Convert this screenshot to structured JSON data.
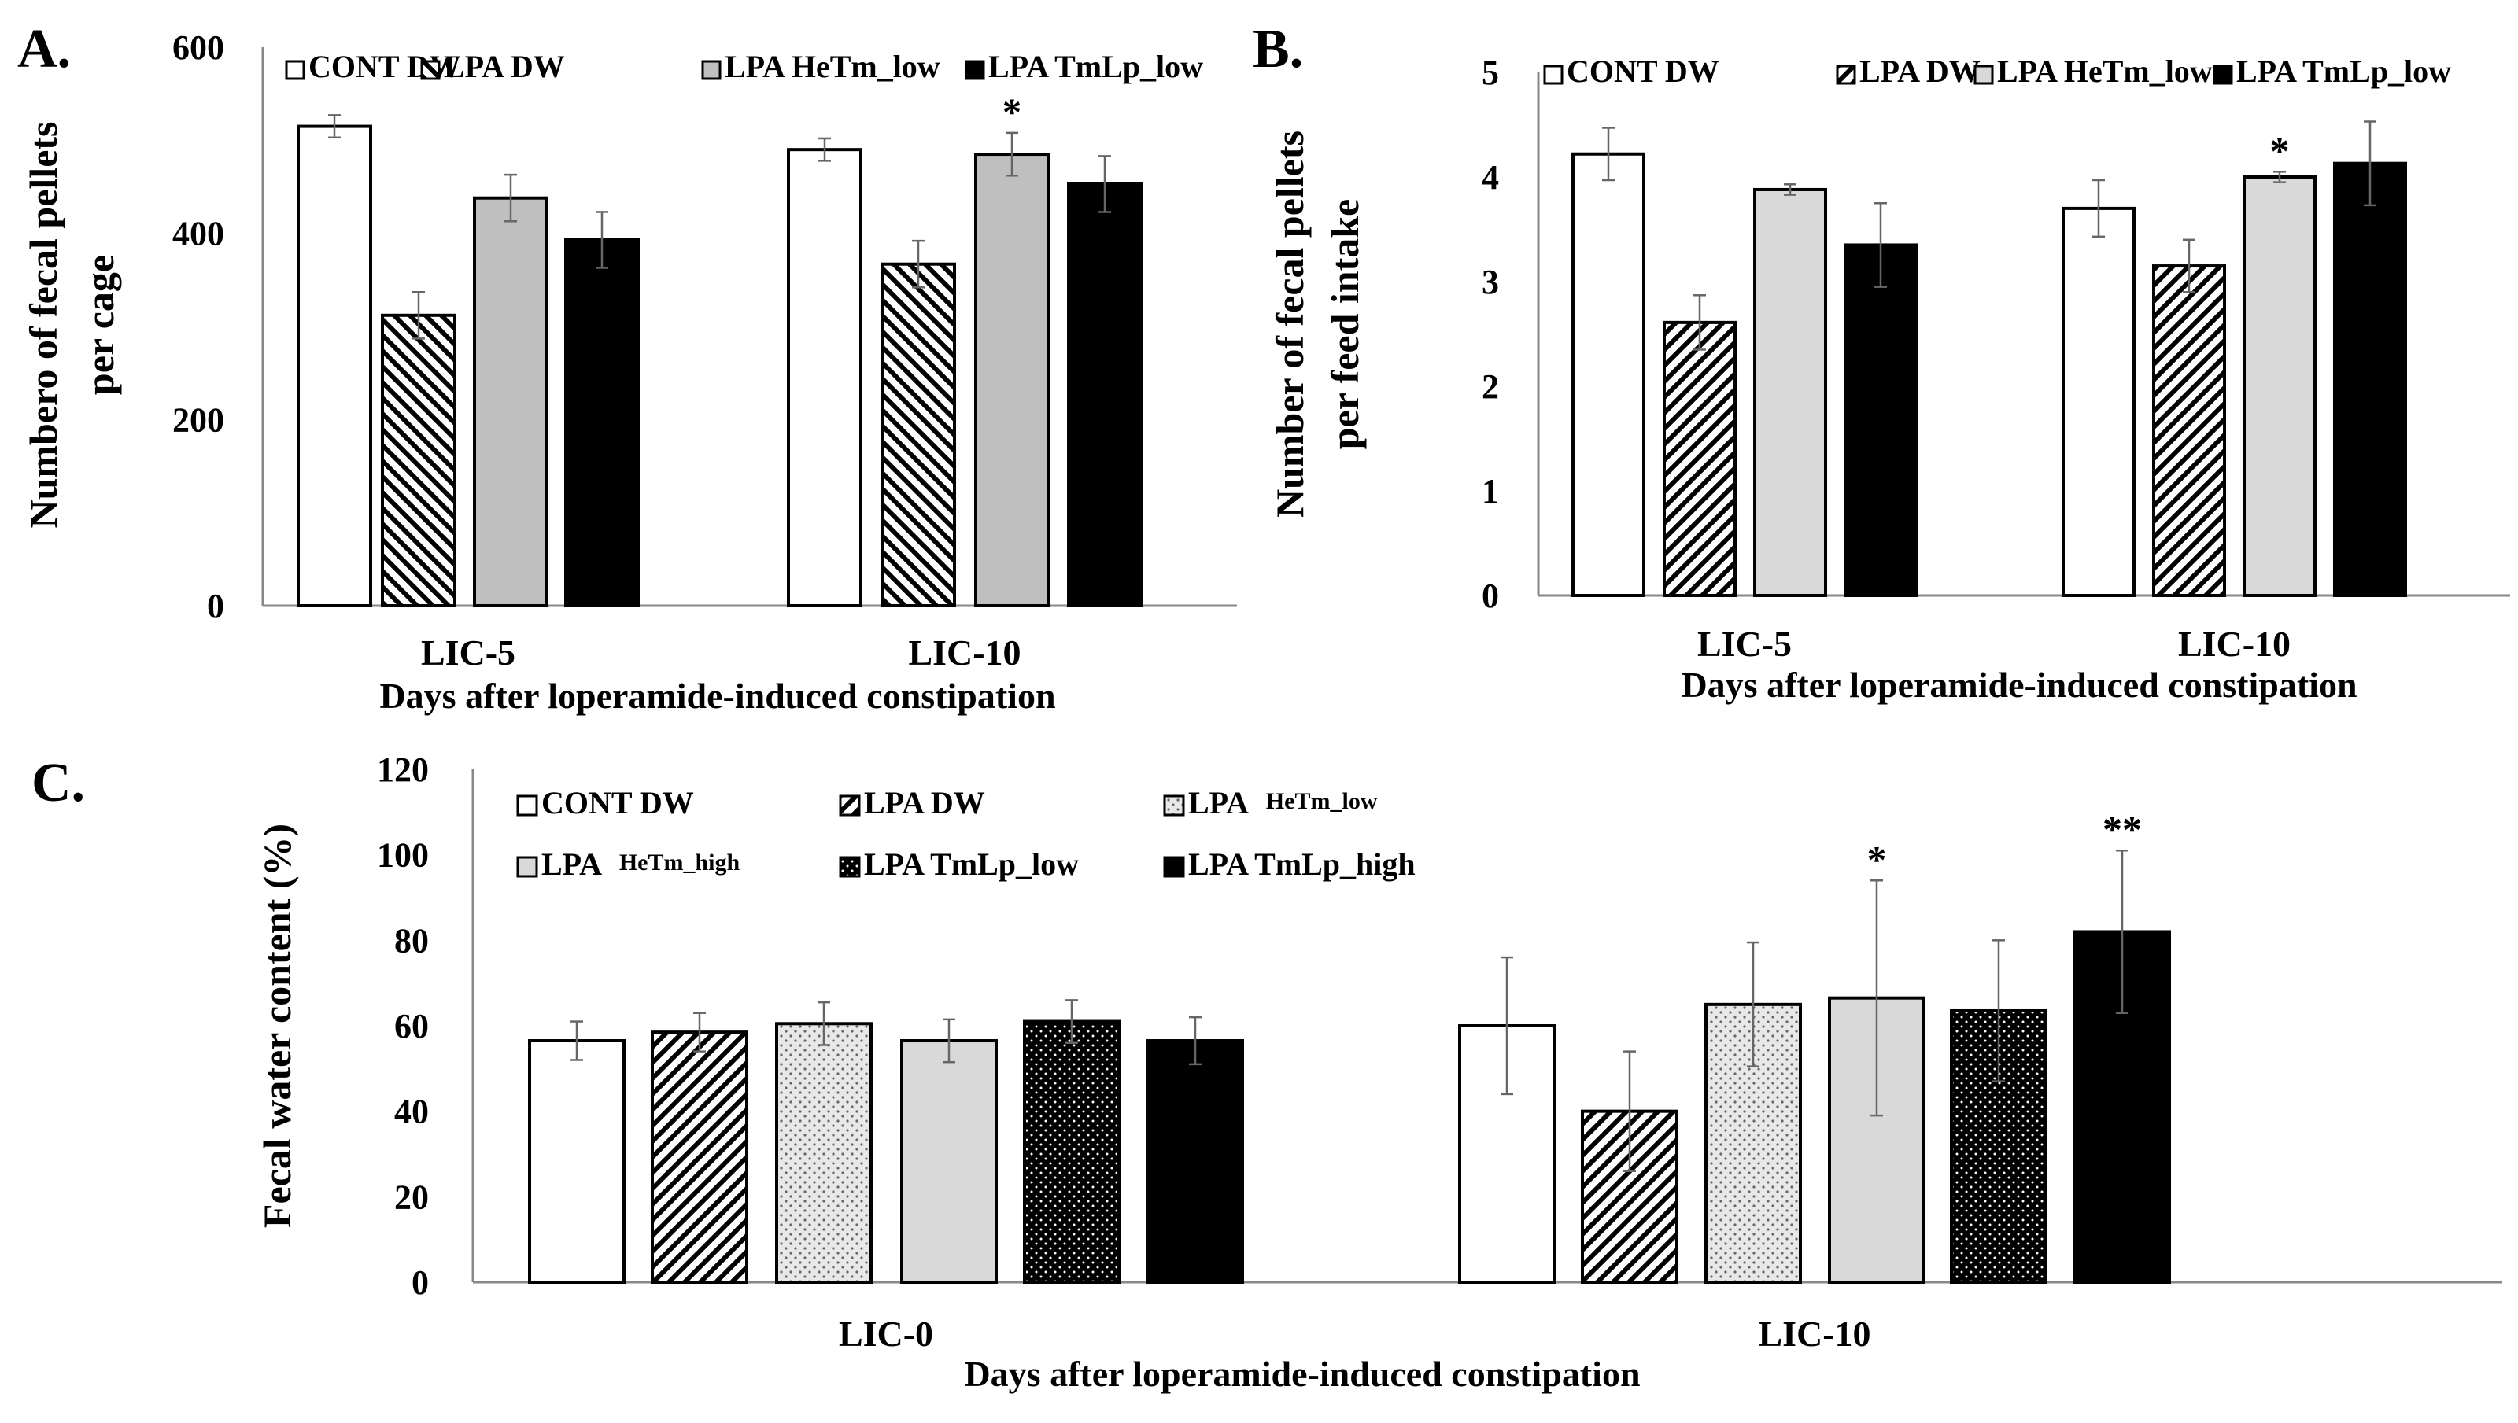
{
  "colors": {
    "black": "#000000",
    "white": "#ffffff",
    "gray": "#bfbfbf",
    "lightgray": "#d9d9d9",
    "dotted_light": "#e8e8e8",
    "axis": "#888888",
    "error": "#666666"
  },
  "chart_data": [
    {
      "id": "A",
      "panel_label": "A.",
      "type": "bar",
      "title": "",
      "categories": [
        "LIC-5",
        "LIC-10"
      ],
      "xlabel": "Days after loperamide-induced constipation",
      "ylabel_lines": [
        "Numbero of fecal pellets",
        "per cage"
      ],
      "ylim": [
        0,
        600
      ],
      "yticks": [
        "0",
        "200",
        "400",
        "600"
      ],
      "legend_position": "top",
      "series": [
        {
          "name": "CONT DW",
          "legend": "CONT DW",
          "legend_small": "",
          "pattern": "white",
          "values": [
            515,
            490
          ],
          "errors": [
            12,
            12
          ],
          "sig": [
            "",
            ""
          ]
        },
        {
          "name": "LPA DW",
          "legend": "LPA DW",
          "legend_small": "",
          "pattern": "hatch-back",
          "values": [
            312,
            367
          ],
          "errors": [
            25,
            25
          ],
          "sig": [
            "",
            ""
          ]
        },
        {
          "name": "LPA HeTm_low",
          "legend": "LPA HeTm_low",
          "legend_small": "",
          "pattern": "gray",
          "values": [
            438,
            485
          ],
          "errors": [
            25,
            23
          ],
          "sig": [
            "",
            "*"
          ]
        },
        {
          "name": "LPA TmLp_low",
          "legend": "LPA TmLp_low",
          "legend_small": "",
          "pattern": "black",
          "values": [
            393,
            453
          ],
          "errors": [
            30,
            30
          ],
          "sig": [
            "",
            ""
          ]
        }
      ]
    },
    {
      "id": "B",
      "panel_label": "B.",
      "type": "bar",
      "title": "",
      "categories": [
        "LIC-5",
        "LIC-10"
      ],
      "xlabel": "Days after loperamide-induced constipation",
      "ylabel_lines": [
        "Number of fecal pellets",
        "per feed intake"
      ],
      "ylim": [
        0,
        5
      ],
      "yticks": [
        "0",
        "1",
        "2",
        "3",
        "4",
        "5"
      ],
      "legend_position": "top",
      "series": [
        {
          "name": "CONT DW",
          "legend": "CONT DW",
          "legend_small": "",
          "pattern": "white",
          "values": [
            4.22,
            3.7
          ],
          "errors": [
            0.25,
            0.27
          ],
          "sig": [
            "",
            ""
          ]
        },
        {
          "name": "LPA DW",
          "legend": "LPA DW",
          "legend_small": "",
          "pattern": "hatch-fwd",
          "values": [
            2.61,
            3.15
          ],
          "errors": [
            0.26,
            0.25
          ],
          "sig": [
            "",
            ""
          ]
        },
        {
          "name": "LPA HeTm_low",
          "legend": "LPA HeTm_low",
          "legend_small": "",
          "pattern": "lightgray",
          "values": [
            3.88,
            4.0
          ],
          "errors": [
            0.05,
            0.05
          ],
          "sig": [
            "",
            "*"
          ]
        },
        {
          "name": "LPA TmLp_low",
          "legend": "LPA TmLp_low",
          "legend_small": "",
          "pattern": "black",
          "values": [
            3.35,
            4.13
          ],
          "errors": [
            0.4,
            0.4
          ],
          "sig": [
            "",
            ""
          ]
        }
      ]
    },
    {
      "id": "C",
      "panel_label": "C.",
      "type": "bar",
      "title": "",
      "categories": [
        "LIC-0",
        "LIC-10"
      ],
      "xlabel": "Days after loperamide-induced constipation",
      "ylabel_lines": [
        "Fecal water content (%)"
      ],
      "ylim": [
        0,
        120
      ],
      "yticks": [
        "0",
        "20",
        "40",
        "60",
        "80",
        "100",
        "120"
      ],
      "legend_position": "top",
      "series": [
        {
          "name": "CONT DW",
          "legend": "CONT DW",
          "legend_small": "",
          "pattern": "white",
          "values": [
            56.5,
            60
          ],
          "errors": [
            4.5,
            16
          ],
          "sig": [
            "",
            ""
          ]
        },
        {
          "name": "LPA DW",
          "legend": "LPA DW",
          "legend_small": "",
          "pattern": "hatch-fwd",
          "values": [
            58.5,
            40
          ],
          "errors": [
            4.5,
            14
          ],
          "sig": [
            "",
            ""
          ]
        },
        {
          "name": "LPA HeTm_low",
          "legend": "LPA ",
          "legend_small": "HeTm_low",
          "pattern": "dots-light",
          "values": [
            60.5,
            65
          ],
          "errors": [
            5,
            14.5
          ],
          "sig": [
            "",
            ""
          ]
        },
        {
          "name": "LPA HeTm_high",
          "legend": "LPA ",
          "legend_small": "HeTm_high",
          "pattern": "lightgray",
          "values": [
            56.5,
            66.5
          ],
          "errors": [
            5,
            27.5
          ],
          "sig": [
            "",
            "*"
          ]
        },
        {
          "name": "LPA TmLp_low",
          "legend": "LPA TmLp_low",
          "legend_small": "",
          "pattern": "dots-black",
          "values": [
            61,
            63.5
          ],
          "errors": [
            5,
            16.5
          ],
          "sig": [
            "",
            ""
          ]
        },
        {
          "name": "LPA TmLp_high",
          "legend": "LPA TmLp_high",
          "legend_small": "",
          "pattern": "black",
          "values": [
            56.5,
            82
          ],
          "errors": [
            5.5,
            19
          ],
          "sig": [
            "",
            "**"
          ]
        }
      ]
    }
  ]
}
